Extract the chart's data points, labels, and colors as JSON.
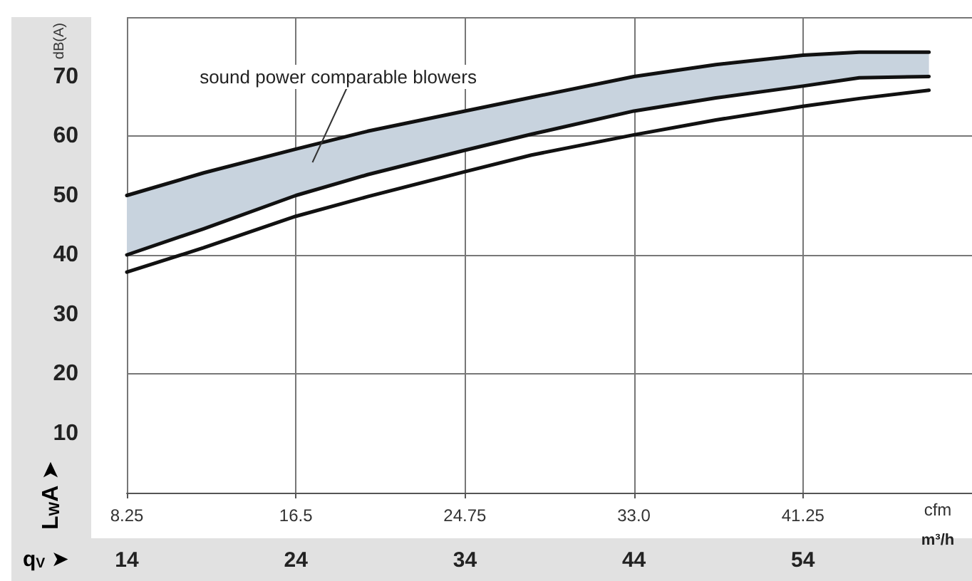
{
  "chart_data": {
    "type": "line",
    "x": [
      8.25,
      12,
      16.5,
      20,
      24.75,
      28,
      33,
      37,
      41.25,
      44,
      47.4
    ],
    "series": [
      {
        "color": "#111111",
        "values": [
          50,
          53.8,
          57.8,
          60.8,
          64.2,
          66.5,
          70,
          72,
          73.6,
          74.1,
          74.1
        ],
        "lower": [
          40,
          44.4,
          50,
          53.5,
          57.6,
          60.3,
          64.2,
          66.4,
          68.4,
          69.8,
          70
        ],
        "upper": [
          50,
          53.8,
          57.8,
          60.8,
          64.2,
          66.5,
          70,
          72,
          73.6,
          74.1,
          74.1
        ]
      },
      {
        "color": "#111111",
        "values": [
          40,
          44.4,
          50,
          53.5,
          57.6,
          60.3,
          64.2,
          66.4,
          68.4,
          69.8,
          70
        ]
      },
      {
        "color": "#111111",
        "values": [
          37.1,
          41.2,
          46.5,
          49.8,
          54,
          56.8,
          60.2,
          62.7,
          65,
          66.3,
          67.7
        ]
      }
    ],
    "xlabel": "cfm",
    "x2label": "m³/h",
    "ylabel": "L$_{W}$A ➤",
    "xlim": [
      8.25,
      49.5
    ],
    "xticks": [
      8.25,
      16.5,
      24.75,
      {
        "value": 33,
        "label": "33.0"
      },
      41.25
    ],
    "x2lim": [
      14,
      64
    ],
    "x2ticks": [
      14,
      24,
      34,
      44,
      54
    ],
    "ylim": [
      0,
      80
    ],
    "yticks": [
      10,
      20,
      30,
      40,
      50,
      60,
      70
    ],
    "annotations": [
      "dB(A)",
      "q$_{V}$ ➤",
      "sound power comparable blowers"
    ],
    "grid": true,
    "marker": "none",
    "line_style": "solid"
  }
}
